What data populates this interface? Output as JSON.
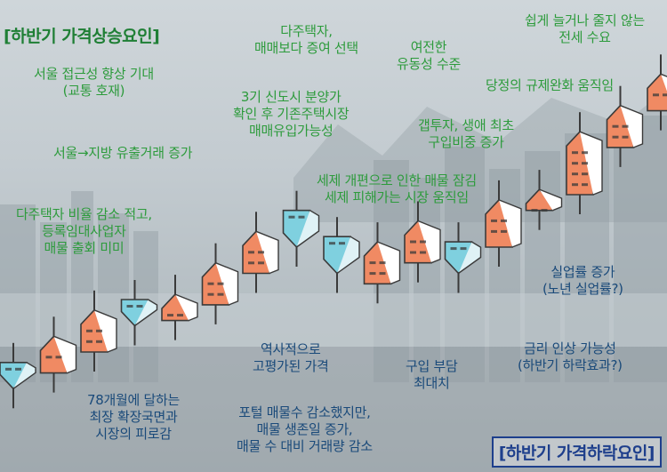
{
  "title_rise": "[하반기 가격상승요인]",
  "title_fall": "[하반기 가격하락요인]",
  "rise_factors": [
    [
      "서울 접근성 향상 기대",
      "(교통 호재)"
    ],
    [
      "서울→지방 유출거래 증가"
    ],
    [
      "다주택자 비율 감소 적고,",
      "등록임대사업자",
      "매물 출회 미미"
    ],
    [
      "다주택자,",
      "매매보다 증여 선택"
    ],
    [
      "3기 신도시 분양가",
      "확인 후 기존주택시장",
      "매매유입가능성"
    ],
    [
      "세제 개편으로 인한 매물 잠김",
      "세제 피해가는 시장 움직임"
    ],
    [
      "여전한",
      "유동성 수준"
    ],
    [
      "갭투자, 생애 최초",
      "구입비중 증가"
    ],
    [
      "쉽게 늘거나 줄지 않는",
      "전세 수요"
    ],
    [
      "당정의 규제완화 움직임"
    ]
  ],
  "fall_factors": [
    [
      "78개월에 달하는",
      "최장 확장국면과",
      "시장의 피로감"
    ],
    [
      "역사적으로",
      "고평가된 가격"
    ],
    [
      "포털 매물수 감소했지만,",
      "매물 생존일 증가,",
      "매물 수 대비 거래량 감소"
    ],
    [
      "구입 부담",
      "최대치"
    ],
    [
      "금리 인상 가능성",
      "(하반기 하락효과?)"
    ],
    [
      "실업률 증가",
      "(노년 실업률?)"
    ]
  ],
  "colors": {
    "rise": "#f08a63",
    "fall": "#7fd0df",
    "rise_text": "#2d9b3c",
    "fall_text": "#1a4a7a",
    "outline": "#3a3a3a"
  },
  "icon_names": [
    "house-up-icon",
    "house-down-icon",
    "city-skyline-icon"
  ],
  "chart_data": {
    "type": "candlestick",
    "candles": [
      {
        "dir": "down",
        "open": 8,
        "close": 3
      },
      {
        "dir": "up",
        "open": 6,
        "close": 13
      },
      {
        "dir": "up",
        "open": 10,
        "close": 18
      },
      {
        "dir": "down",
        "open": 20,
        "close": 15
      },
      {
        "dir": "up",
        "open": 16,
        "close": 21
      },
      {
        "dir": "up",
        "open": 19,
        "close": 27
      },
      {
        "dir": "up",
        "open": 25,
        "close": 33
      },
      {
        "dir": "down",
        "open": 37,
        "close": 30
      },
      {
        "dir": "down",
        "open": 32,
        "close": 25
      },
      {
        "dir": "up",
        "open": 23,
        "close": 31
      },
      {
        "dir": "up",
        "open": 27,
        "close": 35
      },
      {
        "dir": "down",
        "open": 31,
        "close": 25
      },
      {
        "dir": "up",
        "open": 30,
        "close": 39
      },
      {
        "dir": "up",
        "open": 37,
        "close": 41
      },
      {
        "dir": "up",
        "open": 40,
        "close": 52
      },
      {
        "dir": "up",
        "open": 49,
        "close": 57
      },
      {
        "dir": "up",
        "open": 56,
        "close": 63
      }
    ]
  }
}
